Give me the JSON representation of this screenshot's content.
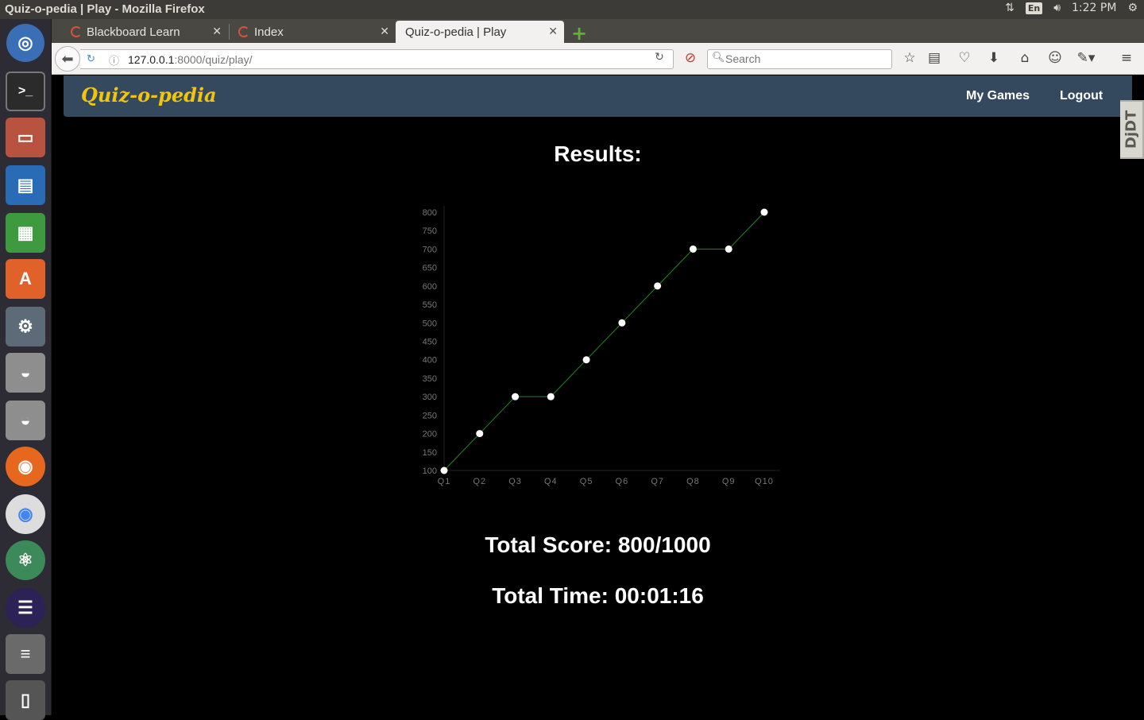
{
  "os": {
    "window_title": "Quiz-o-pedia | Play - Mozilla Firefox",
    "keyboard_layout": "En",
    "clock": "1:22 PM"
  },
  "browser": {
    "tabs": [
      {
        "label": "Blackboard Learn",
        "active": false
      },
      {
        "label": "Index",
        "active": false
      },
      {
        "label": "Quiz-o-pedia | Play",
        "active": true
      }
    ],
    "url_host": "127.0.0.1",
    "url_path": ":8000/quiz/play/",
    "search_placeholder": "Search"
  },
  "site": {
    "brand": "Quiz-o-pedia",
    "nav": {
      "my_games": "My Games",
      "logout": "Logout"
    },
    "debug_toolbar_label": "DjDT",
    "results_title": "Results:",
    "total_score": "Total Score: 800/1000",
    "total_time": "Total Time: 00:01:16"
  },
  "chart_data": {
    "type": "line",
    "categories": [
      "Q1",
      "Q2",
      "Q3",
      "Q4",
      "Q5",
      "Q6",
      "Q7",
      "Q8",
      "Q9",
      "Q10"
    ],
    "values": [
      100,
      200,
      300,
      300,
      400,
      500,
      600,
      700,
      700,
      800
    ],
    "ylim": [
      100,
      800
    ],
    "yticks": [
      100,
      150,
      200,
      250,
      300,
      350,
      400,
      450,
      500,
      550,
      600,
      650,
      700,
      750,
      800
    ],
    "line_color": "#1e8a1e",
    "point_color": "#ffffff",
    "grid": false
  }
}
